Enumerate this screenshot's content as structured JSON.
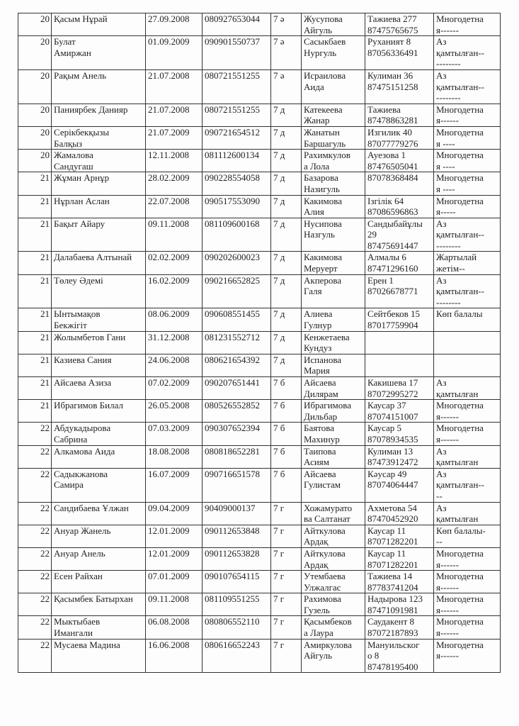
{
  "table": {
    "rows": [
      [
        "20",
        "Қасым Нұрай",
        "27.09.2008",
        "080927653044",
        "7 ә",
        "Жусупова\nАйгуль",
        "Тажиева 277\n87475765675",
        "Многодетна\nя------"
      ],
      [
        "20",
        "Булат\nАмиржан",
        "01.09.2009",
        "090901550737",
        "7 ә",
        "Сасыкбаев\nНургуль",
        "Руханият 8\n87056336491",
        "Аз\nқамтылған--\n--------"
      ],
      [
        "20",
        "Рақым Анель",
        "21.07.2008",
        "080721551255",
        "7 ә",
        "Исраилова\nАида",
        "Кулиман 36\n87475151258",
        "Аз\nқамтылған--\n--------"
      ],
      [
        "20",
        "Паниярбек Данияр",
        "21.07.2008",
        "080721551255",
        "7 д",
        "Катекеева\nЖанар",
        "Тажиева\n87478863281",
        "Многодетна\nя------"
      ],
      [
        "20",
        "Серікбекқызы\nБалқыз",
        "21.07.2009",
        "090721654512",
        "7 д",
        "Жанатын\nБаршагуль",
        "Изгилик 40\n87077779276",
        "Многодетна\nя ----"
      ],
      [
        "20",
        "Жамалова\nСандугаш",
        "12.11.2008",
        "081112600134",
        "7 д",
        "Рахимкулов\nа Лола",
        "Ауезова 1\n87476505041",
        "Многодетна\nя ----"
      ],
      [
        "21",
        "Жұман Арнұр",
        "28.02.2009",
        "090228554058",
        "7 д",
        "Базарова\nНазигуль",
        "87078368484",
        "Многодетна\nя ----"
      ],
      [
        "21",
        "Нұрлан Аслан",
        "22.07.2008",
        "090517553090",
        "7 д",
        "Какимова\nАлия",
        "Ізгілік 64\n87086596863",
        "Многодетна\nя-----"
      ],
      [
        "21",
        "Бақыт Айару",
        "09.11.2008",
        "081109600168",
        "7 д",
        "Нусипова\nНазгуль",
        "Сандыбайұлы\n29\n87475691447",
        "Аз\nқамтылған--\n--------"
      ],
      [
        "21",
        "Далабаева Алтынай",
        "02.02.2009",
        "090202600023",
        "7 д",
        "Какимова\nМеруерт",
        "Алмалы 6\n87471296160",
        "Жартылай\nжетім--"
      ],
      [
        "21",
        "Төлеу Әдемі",
        "16.02.2009",
        "090216652825",
        "7 д",
        "Акперова\nГаля",
        "Ерен 1\n87026678771",
        "Аз\nқамтылған--\n--------"
      ],
      [
        "21",
        "Ынтымақов\nБекжігіт",
        "08.06.2009",
        "090608551455",
        "7  д",
        "Алиева\nГулнур",
        "Сейтбеков 15\n87017759904",
        "Көп балалы"
      ],
      [
        "21",
        "Жолымбетов Гани",
        "31.12.2008",
        "081231552712",
        "7 д",
        "Кенжетаева\nКундуз",
        "",
        ""
      ],
      [
        "21",
        "Казиева Сания",
        "24.06.2008",
        "080621654392",
        "7 д",
        "Испанова\nМария",
        "",
        ""
      ],
      [
        "21",
        "Айсаева Азиза",
        "07.02.2009",
        "090207651441",
        "7 б",
        "Айсаева\nДилярам",
        "Какишева 17\n87072995272",
        "Аз\nқамтылған"
      ],
      [
        "21",
        "Ибрагимов Билал",
        "26.05.2008",
        "080526552852",
        "7 б",
        "Ибрагимова\nДильбар",
        "Каусар 37\n87074151007",
        "Многодетна\nя------"
      ],
      [
        "22",
        "Абдукадырова\nСабрина",
        "07.03.2009",
        "090307652394",
        "7 б",
        "Баятова\nМахинур",
        "Каусар 5\n87078934535",
        "Многодетна\nя------"
      ],
      [
        "22",
        "Алкамова Аида",
        "18.08.2008",
        "080818652281",
        "7 б",
        "Таипова\nАсиям",
        "Кулиман 13\n87473912472",
        "Аз\nқамтылған"
      ],
      [
        "22",
        "Садыкжанова\nСамира",
        "16.07.2009",
        "090716651578",
        "7 б",
        "Айсаева\nГулистам",
        "Кәусар 49\n87074064447",
        "Аз\nқамтылған--\n--"
      ],
      [
        "22",
        "Сандибаева Ұлжан",
        "09.04.2009",
        "90409000137",
        "7 г",
        "Хожамурато\nва Салтанат",
        "Ахметова 54\n87470452920",
        "Аз\nқамтылған"
      ],
      [
        "22",
        "Ануар Жанель",
        "12.01.2009",
        "090112653848",
        "7 г",
        "Айткулова\nАрдақ",
        "Каусар 11\n87071282201",
        "Көп балалы-\n--"
      ],
      [
        "22",
        "Ануар Анель",
        "12.01.2009",
        "090112653828",
        "7 г",
        "Айткулова\nАрдақ",
        "Каусар 11\n87071282201",
        "Многодетна\nя------"
      ],
      [
        "22",
        "Есен Райхан",
        "07.01.2009",
        "090107654115",
        "7 г",
        "Утембаева\nУлжалгас",
        "Тажиева 14\n87783741204",
        "Многодетна\nя------"
      ],
      [
        "22",
        "Қасымбек Батырхан",
        "09.11.2008",
        "081109551255",
        "7 г",
        "Рахимова\nГузель",
        "Надырова 123\n87471091981",
        "Многодетна\nя------"
      ],
      [
        "22",
        "Мыктыбаев\nИмангали",
        "06.08.2008",
        "080806552110",
        "7 г",
        "Қасымбеков\nа Лаура",
        "Саудакент 8\n87072187893",
        "Многодетна\nя------"
      ],
      [
        "22",
        "Мусаева Мадина",
        "16.06.2008",
        "080616652243",
        "7 г",
        "Амиркулова\nАйгуль",
        "Мануильског\nо 8\n87478195400",
        "Многодетна\nя------"
      ]
    ]
  }
}
